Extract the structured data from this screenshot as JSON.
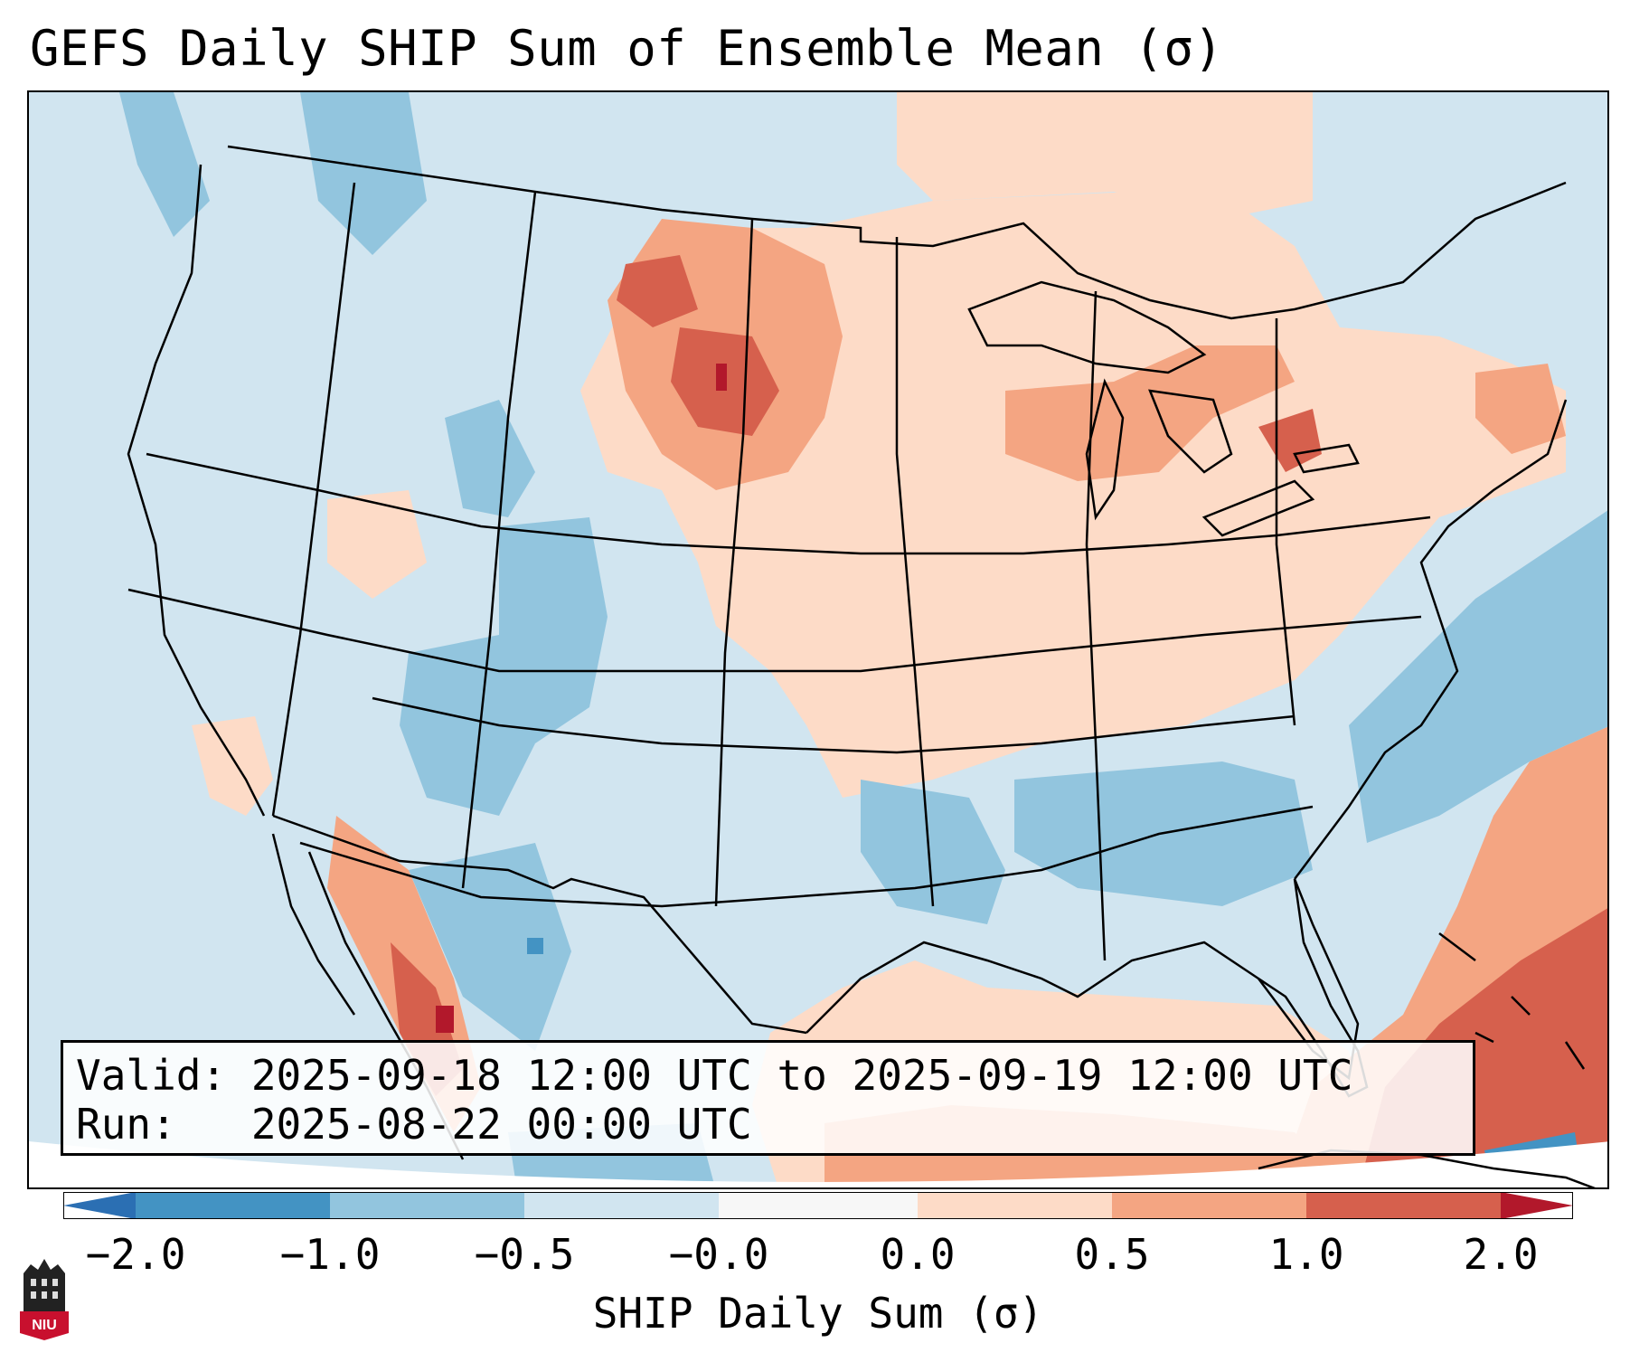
{
  "title": "GEFS Daily SHIP Sum of Ensemble Mean (σ)",
  "info": {
    "valid_line": "Valid: 2025-09-18 12:00 UTC to 2025-09-19 12:00 UTC",
    "run_line": "Run:   2025-08-22 00:00 UTC"
  },
  "colorbar": {
    "label": "SHIP Daily Sum (σ)",
    "ticks": [
      "−2.0",
      "−1.0",
      "−0.5",
      "−0.0",
      "0.0",
      "0.5",
      "1.0",
      "2.0"
    ],
    "bins": [
      {
        "range": "< -2.0",
        "color": "#2b6fb3"
      },
      {
        "range": "-2.0 to -1.0",
        "color": "#4393c3"
      },
      {
        "range": "-1.0 to -0.5",
        "color": "#92c5de"
      },
      {
        "range": "-0.5 to 0.0",
        "color": "#d1e5f0"
      },
      {
        "range": "0.0",
        "color": "#f7f7f7"
      },
      {
        "range": "0.0 to 0.5",
        "color": "#fddbc7"
      },
      {
        "range": "0.5 to 1.0",
        "color": "#f4a582"
      },
      {
        "range": "1.0 to 2.0",
        "color": "#d6604d"
      },
      {
        "range": "> 2.0",
        "color": "#b2182b"
      }
    ]
  },
  "logo": {
    "text": "NIU"
  },
  "map": {
    "region": "Contiguous United States, northern Mexico, Gulf of Mexico, western Atlantic",
    "anomaly_areas": [
      {
        "area": "South Dakota / western Nebraska",
        "level": "1.0 to 2.0",
        "color": "#d6604d"
      },
      {
        "area": "Great Lakes / Ohio Valley",
        "level": "0.0 to 0.5",
        "color": "#fddbc7"
      },
      {
        "area": "Southern Ontario / Quebec",
        "level": "0.5 to 1.0",
        "color": "#f4a582"
      },
      {
        "area": "Western Atlantic / Bahamas",
        "level": "1.0 to 2.0",
        "color": "#d6604d"
      },
      {
        "area": "Sierra Madre Occidental, Mexico",
        "level": "1.0 to 2.0",
        "color": "#d6604d"
      },
      {
        "area": "Interior West / Southwest",
        "level": "-1.0 to -0.5",
        "color": "#92c5de"
      },
      {
        "area": "Gulf Coast states",
        "level": "-1.0 to -0.5",
        "color": "#92c5de"
      },
      {
        "area": "Western Gulf of Mexico / Texas coast",
        "level": "0.0 to 0.5",
        "color": "#fddbc7"
      }
    ]
  }
}
